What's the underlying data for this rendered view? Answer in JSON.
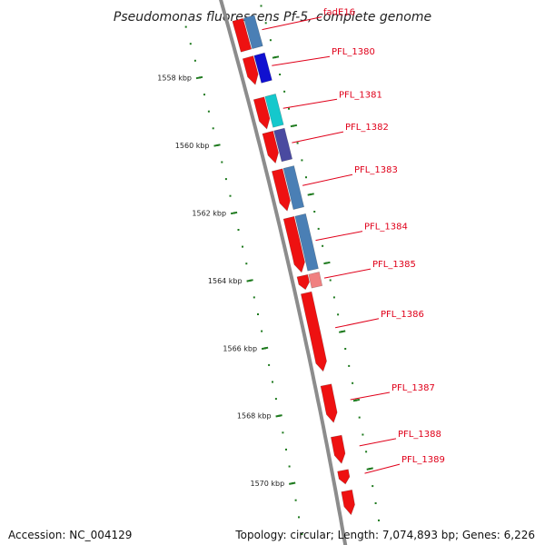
{
  "title": "Pseudomonas fluorescens Pf-5, complete genome",
  "footer": {
    "accession": "Accession: NC_004129",
    "topology": "Topology: circular; Length: 7,074,893 bp; Genes: 6,226"
  },
  "colors": {
    "backbone": "#8c8c8c",
    "tick": "#1e7a1e",
    "label": "#e0001a",
    "cds": "#ee1111",
    "steelblue": "#4a7fb5",
    "blue": "#1010d0",
    "cyan": "#14c8cc",
    "slate": "#4a4aa0",
    "salmon": "#f08080"
  },
  "kbp_ticks": [
    {
      "kbp": 1558,
      "label": "1558 kbp"
    },
    {
      "kbp": 1560,
      "label": "1560 kbp"
    },
    {
      "kbp": 1562,
      "label": "1562 kbp"
    },
    {
      "kbp": 1564,
      "label": "1564 kbp"
    },
    {
      "kbp": 1566,
      "label": "1566 kbp"
    },
    {
      "kbp": 1568,
      "label": "1568 kbp"
    },
    {
      "kbp": 1570,
      "label": "1570 kbp"
    }
  ],
  "genes": [
    {
      "name": "fadE16",
      "start_kbp": 1556.7,
      "end_kbp": 1557.6,
      "strand": "-",
      "cog_color": "steelblue"
    },
    {
      "name": "PFL_1380",
      "start_kbp": 1557.8,
      "end_kbp": 1558.6,
      "strand": "+",
      "cog_color": "blue"
    },
    {
      "name": "PFL_1381",
      "start_kbp": 1559.0,
      "end_kbp": 1559.9,
      "strand": "+",
      "cog_color": "cyan"
    },
    {
      "name": "PFL_1382",
      "start_kbp": 1560.0,
      "end_kbp": 1560.9,
      "strand": "+",
      "cog_color": "slate"
    },
    {
      "name": "PFL_1383",
      "start_kbp": 1561.1,
      "end_kbp": 1562.3,
      "strand": "+",
      "cog_color": "steelblue"
    },
    {
      "name": "PFL_1384",
      "start_kbp": 1562.5,
      "end_kbp": 1564.1,
      "strand": "+",
      "cog_color": "steelblue"
    },
    {
      "name": "PFL_1385",
      "start_kbp": 1564.2,
      "end_kbp": 1564.6,
      "strand": "+",
      "cog_color": "salmon"
    },
    {
      "name": "PFL_1386",
      "start_kbp": 1564.7,
      "end_kbp": 1567.0,
      "strand": "+",
      "cog_color": ""
    },
    {
      "name": "PFL_1387",
      "start_kbp": 1567.4,
      "end_kbp": 1568.5,
      "strand": "+",
      "cog_color": ""
    },
    {
      "name": "PFL_1388",
      "start_kbp": 1568.9,
      "end_kbp": 1569.7,
      "strand": "+",
      "cog_color": ""
    },
    {
      "name": "PFL_1389",
      "start_kbp": 1569.9,
      "end_kbp": 1570.3,
      "strand": "+",
      "cog_color": ""
    },
    {
      "name": "",
      "start_kbp": 1570.5,
      "end_kbp": 1571.2,
      "strand": "+",
      "cog_color": ""
    }
  ]
}
